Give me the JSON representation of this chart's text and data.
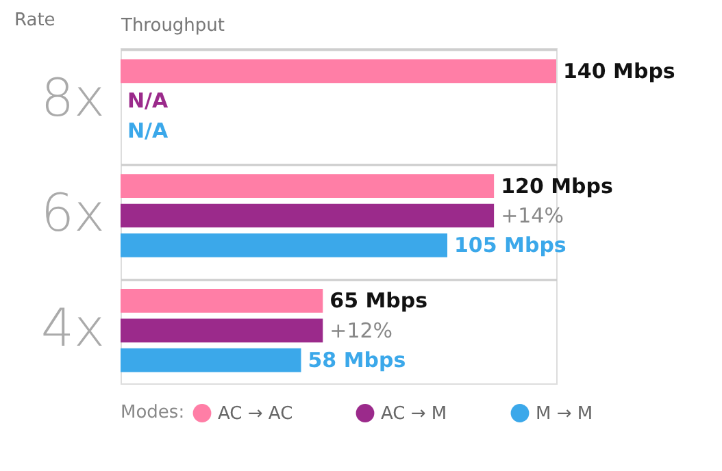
{
  "chart_data": {
    "type": "bar",
    "orientation": "horizontal",
    "xlabel": "Throughput",
    "ylabel": "Rate",
    "legend_title": "Modes:",
    "legend": "bottom",
    "grid": "y",
    "categories": [
      "8x",
      "6x",
      "4x"
    ],
    "series": [
      {
        "name": "AC → AC",
        "color": "#ff7ea6",
        "values": [
          140,
          120,
          65
        ],
        "value_labels": [
          "140 Mbps",
          "120 Mbps",
          "65 Mbps"
        ]
      },
      {
        "name": "AC → M",
        "color": "#9b2a8b",
        "values": [
          null,
          120,
          65
        ],
        "value_labels": [
          "N/A",
          null,
          null
        ]
      },
      {
        "name": "M → M",
        "color": "#3ba8ea",
        "values": [
          null,
          105,
          58
        ],
        "value_labels": [
          "N/A",
          "105 Mbps",
          "58 Mbps"
        ]
      }
    ],
    "annotations": [
      {
        "text": "+14%",
        "x": 120,
        "y": "6x"
      },
      {
        "text": "+12%",
        "x": 65,
        "y": "4x"
      }
    ]
  }
}
